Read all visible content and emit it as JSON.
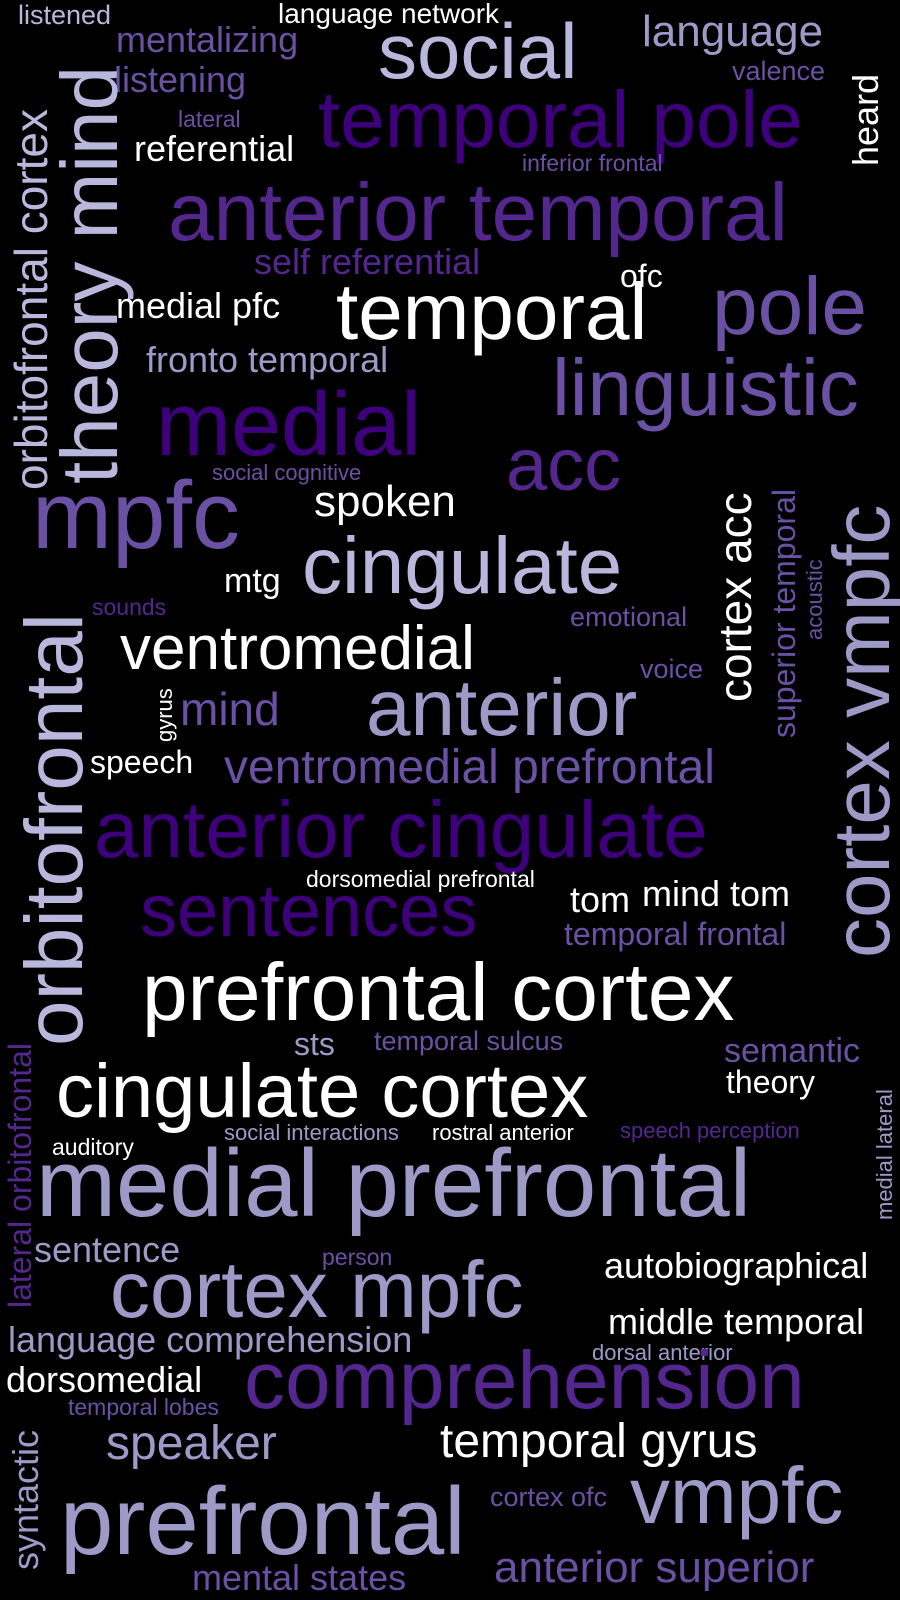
{
  "words": {
    "listened": "listened",
    "language_network": "language network",
    "mentalizing": "mentalizing",
    "social": "social",
    "language": "language",
    "valence": "valence",
    "listening": "listening",
    "temporal_pole": "temporal pole",
    "heard": "heard",
    "lateral": "lateral",
    "referential": "referential",
    "inferior_frontal": "inferior frontal",
    "orbitofrontal_cortex": "orbitofrontal cortex",
    "theory_mind": "theory mind",
    "anterior_temporal": "anterior temporal",
    "self_referential": "self referential",
    "ofc": "ofc",
    "medial_pfc": "medial pfc",
    "temporal": "temporal",
    "pole": "pole",
    "fronto_temporal": "fronto temporal",
    "linguistic": "linguistic",
    "medial": "medial",
    "acc": "acc",
    "social_cognitive": "social cognitive",
    "mpfc": "mpfc",
    "spoken": "spoken",
    "cortex_acc": "cortex acc",
    "superior_temporal": "superior temporal",
    "acoustic": "acoustic",
    "cortex_vmpfc": "cortex vmpfc",
    "mtg": "mtg",
    "cingulate": "cingulate",
    "sounds": "sounds",
    "emotional": "emotional",
    "orbitofrontal": "orbitofrontal",
    "ventromedial": "ventromedial",
    "voice": "voice",
    "gyrus": "gyrus",
    "mind": "mind",
    "anterior": "anterior",
    "speech": "speech",
    "ventromedial_prefrontal": "ventromedial prefrontal",
    "anterior_cingulate": "anterior cingulate",
    "dorsomedial_prefrontal": "dorsomedial prefrontal",
    "tom": "tom",
    "mind_tom": "mind tom",
    "sentences": "sentences",
    "temporal_frontal": "temporal frontal",
    "prefrontal_cortex": "prefrontal cortex",
    "lateral_orbitofrontal": "lateral orbitofrontal",
    "sts": "sts",
    "temporal_sulcus": "temporal sulcus",
    "semantic": "semantic",
    "cingulate_cortex": "cingulate cortex",
    "theory": "theory",
    "medial_lateral": "medial lateral",
    "auditory": "auditory",
    "social_interactions": "social interactions",
    "rostral_anterior": "rostral anterior",
    "speech_perception": "speech perception",
    "medial_prefrontal": "medial prefrontal",
    "sentence": "sentence",
    "person": "person",
    "autobiographical": "autobiographical",
    "cortex_mpfc": "cortex mpfc",
    "middle_temporal": "middle temporal",
    "language_comprehension": "language comprehension",
    "dorsal_anterior": "dorsal anterior",
    "dorsomedial": "dorsomedial",
    "comprehension": "comprehension",
    "temporal_lobes": "temporal lobes",
    "syntactic": "syntactic",
    "speaker": "speaker",
    "temporal_gyrus": "temporal gyrus",
    "prefrontal": "prefrontal",
    "cortex_ofc": "cortex ofc",
    "vmpfc": "vmpfc",
    "mental_states": "mental states",
    "anterior_superior": "anterior superior"
  },
  "colors": {
    "background": "#000000",
    "white": "#ffffff",
    "lavender_light": "#b9b7dc",
    "lavender": "#9e9ac8",
    "purple_mid": "#6a51a3",
    "purple": "#54278f",
    "purple_dark": "#3f007d"
  }
}
